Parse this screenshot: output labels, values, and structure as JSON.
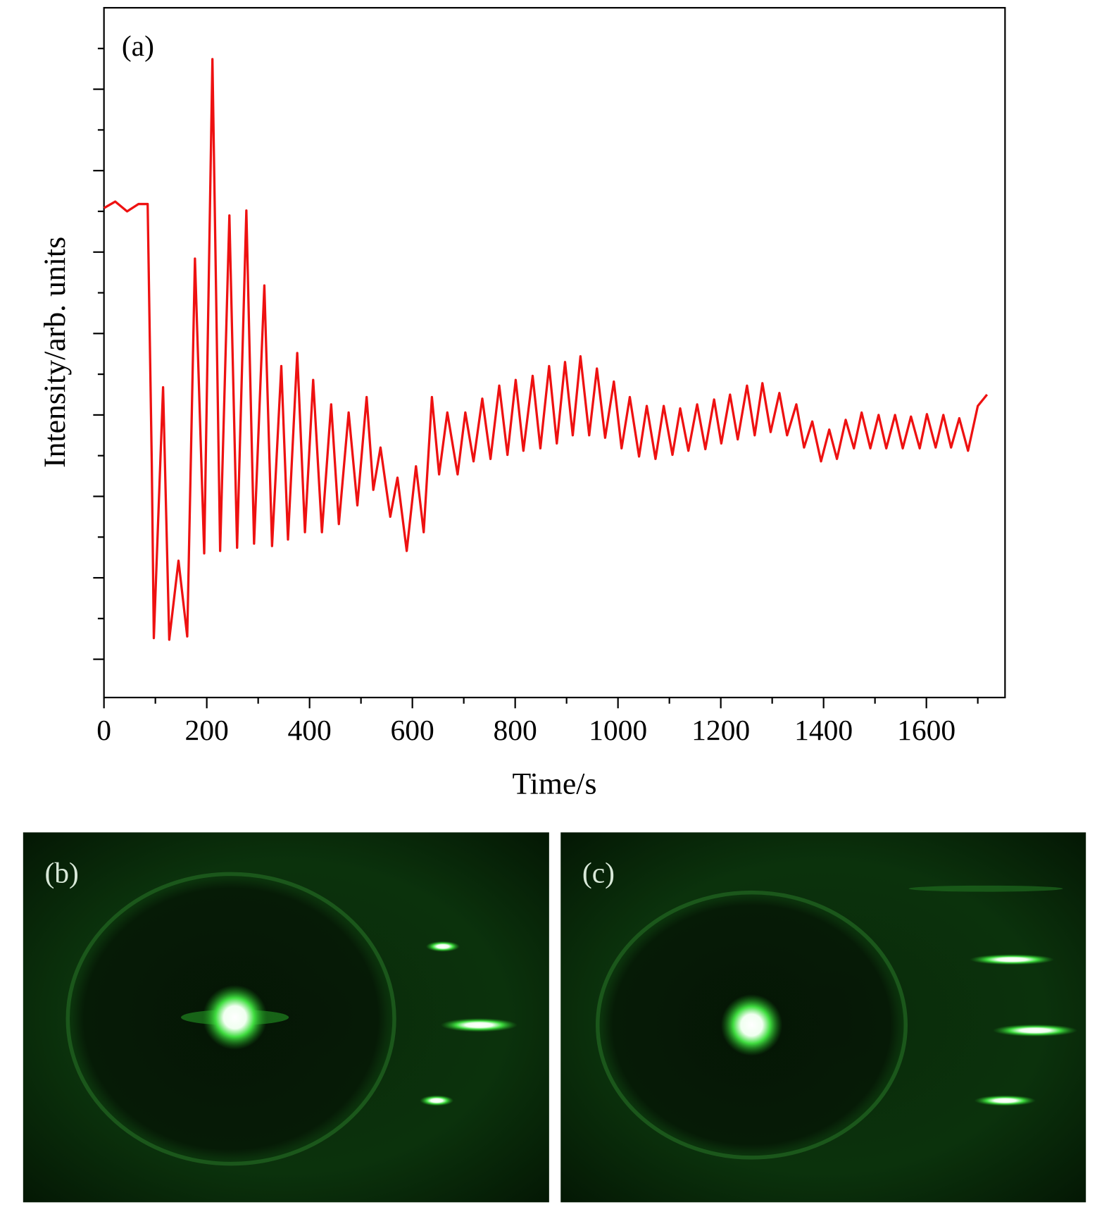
{
  "chart_data": {
    "type": "line",
    "panel_label": "(a)",
    "xlabel": "Time/s",
    "ylabel": "Intensity/arb. units",
    "color": "#ee1111",
    "x": [
      0,
      22,
      45,
      67,
      85,
      93,
      97,
      115,
      127,
      145,
      162,
      177,
      195,
      211,
      226,
      244,
      259,
      277,
      292,
      312,
      327,
      345,
      358,
      376,
      391,
      407,
      424,
      442,
      457,
      476,
      493,
      511,
      524,
      538,
      557,
      571,
      589,
      607,
      622,
      638,
      652,
      668,
      688,
      703,
      719,
      736,
      752,
      769,
      785,
      801,
      816,
      834,
      849,
      866,
      881,
      897,
      912,
      927,
      944,
      959,
      975,
      992,
      1007,
      1023,
      1041,
      1056,
      1073,
      1089,
      1106,
      1121,
      1137,
      1154,
      1170,
      1187,
      1201,
      1218,
      1233,
      1251,
      1266,
      1281,
      1297,
      1314,
      1329,
      1347,
      1362,
      1378,
      1395,
      1411,
      1426,
      1443,
      1459,
      1474,
      1491,
      1507,
      1522,
      1539,
      1554,
      1570,
      1587,
      1601,
      1618,
      1633,
      1648,
      1664,
      1681,
      1700,
      1718
    ],
    "values": [
      6.54,
      6.62,
      6.5,
      6.59,
      6.59,
      3.41,
      1.26,
      4.34,
      1.24,
      2.21,
      1.28,
      5.92,
      2.3,
      8.37,
      2.33,
      6.45,
      2.37,
      6.51,
      2.42,
      5.59,
      2.39,
      4.6,
      2.47,
      4.76,
      2.56,
      4.43,
      2.56,
      4.13,
      2.66,
      4.03,
      2.89,
      4.22,
      3.08,
      3.6,
      2.75,
      3.23,
      2.33,
      3.37,
      2.56,
      4.22,
      3.27,
      4.03,
      3.27,
      4.03,
      3.43,
      4.2,
      3.46,
      4.36,
      3.51,
      4.43,
      3.56,
      4.48,
      3.59,
      4.6,
      3.65,
      4.65,
      3.75,
      4.72,
      3.75,
      4.57,
      3.72,
      4.41,
      3.59,
      4.22,
      3.49,
      4.11,
      3.46,
      4.11,
      3.51,
      4.08,
      3.56,
      4.13,
      3.58,
      4.19,
      3.65,
      4.25,
      3.7,
      4.36,
      3.75,
      4.39,
      3.79,
      4.27,
      3.75,
      4.13,
      3.6,
      3.92,
      3.43,
      3.82,
      3.46,
      3.94,
      3.59,
      4.03,
      3.59,
      4.0,
      3.59,
      4.0,
      3.59,
      3.98,
      3.59,
      4.01,
      3.6,
      4.0,
      3.6,
      3.96,
      3.56,
      4.11,
      4.25
    ],
    "xlim": [
      0,
      1753
    ],
    "xticks": [
      0,
      200,
      400,
      600,
      800,
      1000,
      1200,
      1400,
      1600
    ],
    "xminorticks": [
      100,
      300,
      500,
      700,
      900,
      1100,
      1300,
      1500,
      1700
    ],
    "ylim": [
      0.53,
      9.0
    ],
    "yticks": [
      1,
      2,
      3,
      4,
      5,
      6,
      7,
      8
    ],
    "yminorticks": [
      1.5,
      2.5,
      3.5,
      4.5,
      5.5,
      6.5,
      7.5,
      8.5
    ]
  },
  "images": [
    {
      "label": "(b)"
    },
    {
      "label": "(c)"
    }
  ]
}
